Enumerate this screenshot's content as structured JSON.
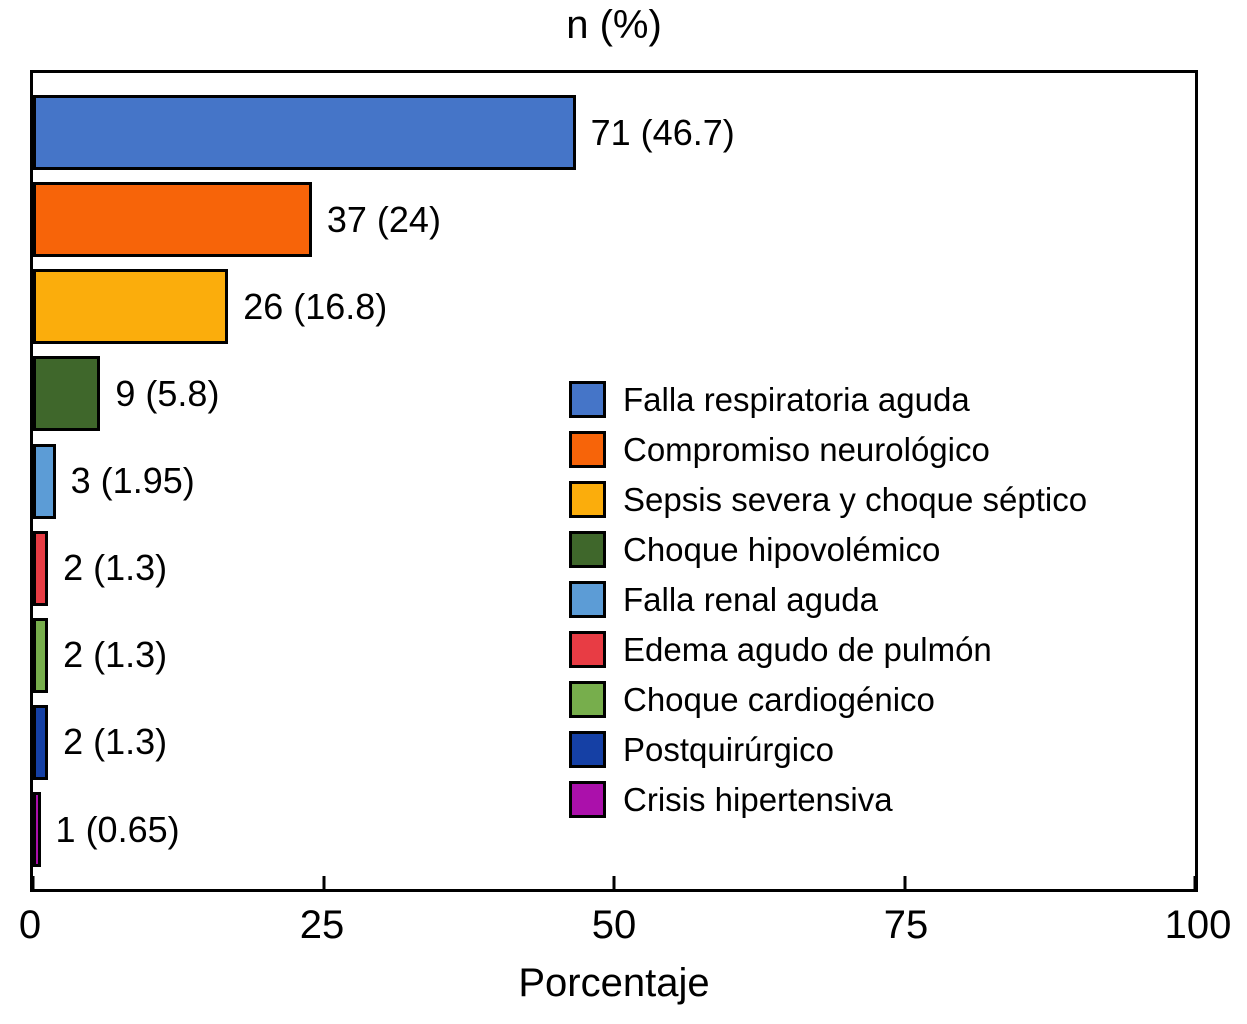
{
  "chart_data": {
    "type": "bar",
    "orientation": "horizontal",
    "title": "n (%)",
    "xlabel": "Porcentaje",
    "xlim": [
      0,
      100
    ],
    "xticks": [
      0,
      25,
      50,
      75,
      100
    ],
    "grid": false,
    "legend_position": "center-right-inside",
    "background": "#ffffff",
    "frame_color": "#000000",
    "text_color": "#000000",
    "categories": [
      "Falla respiratoria aguda",
      "Compromiso neurológico",
      "Sepsis severa y choque séptico",
      "Choque hipovolémico",
      "Falla renal aguda",
      "Edema agudo de pulmón",
      "Choque cardiogénico",
      "Postquirúrgico",
      "Crisis hipertensiva"
    ],
    "counts": [
      71,
      37,
      26,
      9,
      3,
      2,
      2,
      2,
      1
    ],
    "percentages": [
      46.7,
      24,
      16.8,
      5.8,
      1.95,
      1.3,
      1.3,
      1.3,
      0.65
    ],
    "bar_labels": [
      "71 (46.7)",
      "37 (24)",
      "26 (16.8)",
      "9 (5.8)",
      "3 (1.95)",
      "2 (1.3)",
      "2 (1.3)",
      "2 (1.3)",
      "1 (0.65)"
    ],
    "colors": [
      "#4575C8",
      "#F76409",
      "#FBAD0C",
      "#3F672B",
      "#5C9CD6",
      "#E83C44",
      "#77AE4C",
      "#1540A5",
      "#AB10AB"
    ]
  }
}
